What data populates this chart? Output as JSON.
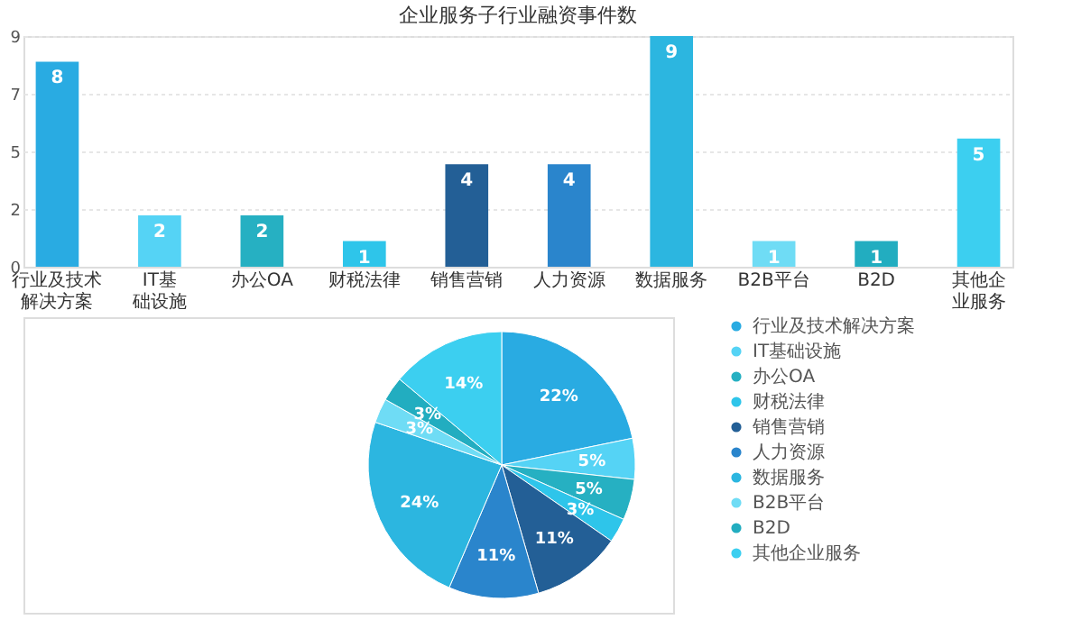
{
  "chart_data": [
    {
      "type": "bar",
      "title": "企业服务子行业融资事件数",
      "categories": [
        "行业及技术解决方案",
        "IT基础设施",
        "办公OA",
        "财税法律",
        "销售营销",
        "人力资源",
        "数据服务",
        "B2B平台",
        "B2D",
        "其他企业服务"
      ],
      "values": [
        8,
        2,
        2,
        1,
        4,
        4,
        9,
        1,
        1,
        5
      ],
      "colors": [
        "#29abe2",
        "#55d3f5",
        "#26b0c2",
        "#2ec5ea",
        "#235f96",
        "#2a85cc",
        "#2cb6e0",
        "#6fdcf5",
        "#22adc0",
        "#3ccff0"
      ],
      "ylim": [
        0,
        9
      ],
      "yticks": [
        0,
        {
          "value": 2.25,
          "label": "2"
        },
        {
          "value": 4.5,
          "label": "5"
        },
        {
          "value": 6.75,
          "label": "7"
        },
        9
      ],
      "grid": "y",
      "data_labels": true
    },
    {
      "type": "pie",
      "categories": [
        "行业及技术解决方案",
        "IT基础设施",
        "办公OA",
        "财税法律",
        "销售营销",
        "人力资源",
        "数据服务",
        "B2B平台",
        "B2D",
        "其他企业服务"
      ],
      "values": [
        22,
        5,
        5,
        3,
        11,
        11,
        24,
        3,
        3,
        14
      ],
      "value_labels": [
        "22%",
        "5%",
        "5%",
        "3%",
        "11%",
        "11%",
        "24%",
        "3%",
        "3%",
        "14%"
      ],
      "colors": [
        "#29abe2",
        "#55d3f5",
        "#26b0c2",
        "#2ec5ea",
        "#235f96",
        "#2a85cc",
        "#2cb6e0",
        "#6fdcf5",
        "#22adc0",
        "#3ccff0"
      ],
      "legend": "right",
      "marker": "circle"
    }
  ]
}
